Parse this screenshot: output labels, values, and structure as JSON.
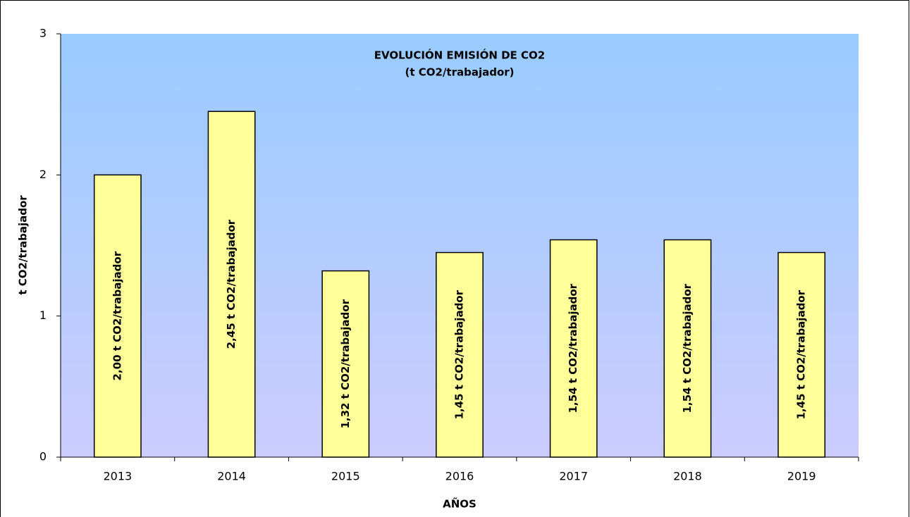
{
  "chart_data": {
    "type": "bar",
    "title": "EVOLUCIÓN EMISIÓN DE CO2",
    "subtitle": "(t CO2/trabajador)",
    "x_label": "AÑOS",
    "y_label": "t CO2/trabajador",
    "categories": [
      "2013",
      "2014",
      "2015",
      "2016",
      "2017",
      "2018",
      "2019"
    ],
    "values": [
      2.0,
      2.45,
      1.32,
      1.45,
      1.54,
      1.54,
      1.45
    ],
    "value_labels": [
      "2,00 t CO2/trabajador",
      "2,45 t CO2/trabajador",
      "1,32 t CO2/trabajador",
      "1,45 t CO2/trabajador",
      "1,54 t CO2/trabajador",
      "1,54 t CO2/trabajador",
      "1,45 t CO2/trabajador"
    ],
    "color": "#ffff99",
    "ylim": [
      0,
      3
    ],
    "yticks": [
      0,
      1,
      2,
      3
    ],
    "grid": false
  }
}
